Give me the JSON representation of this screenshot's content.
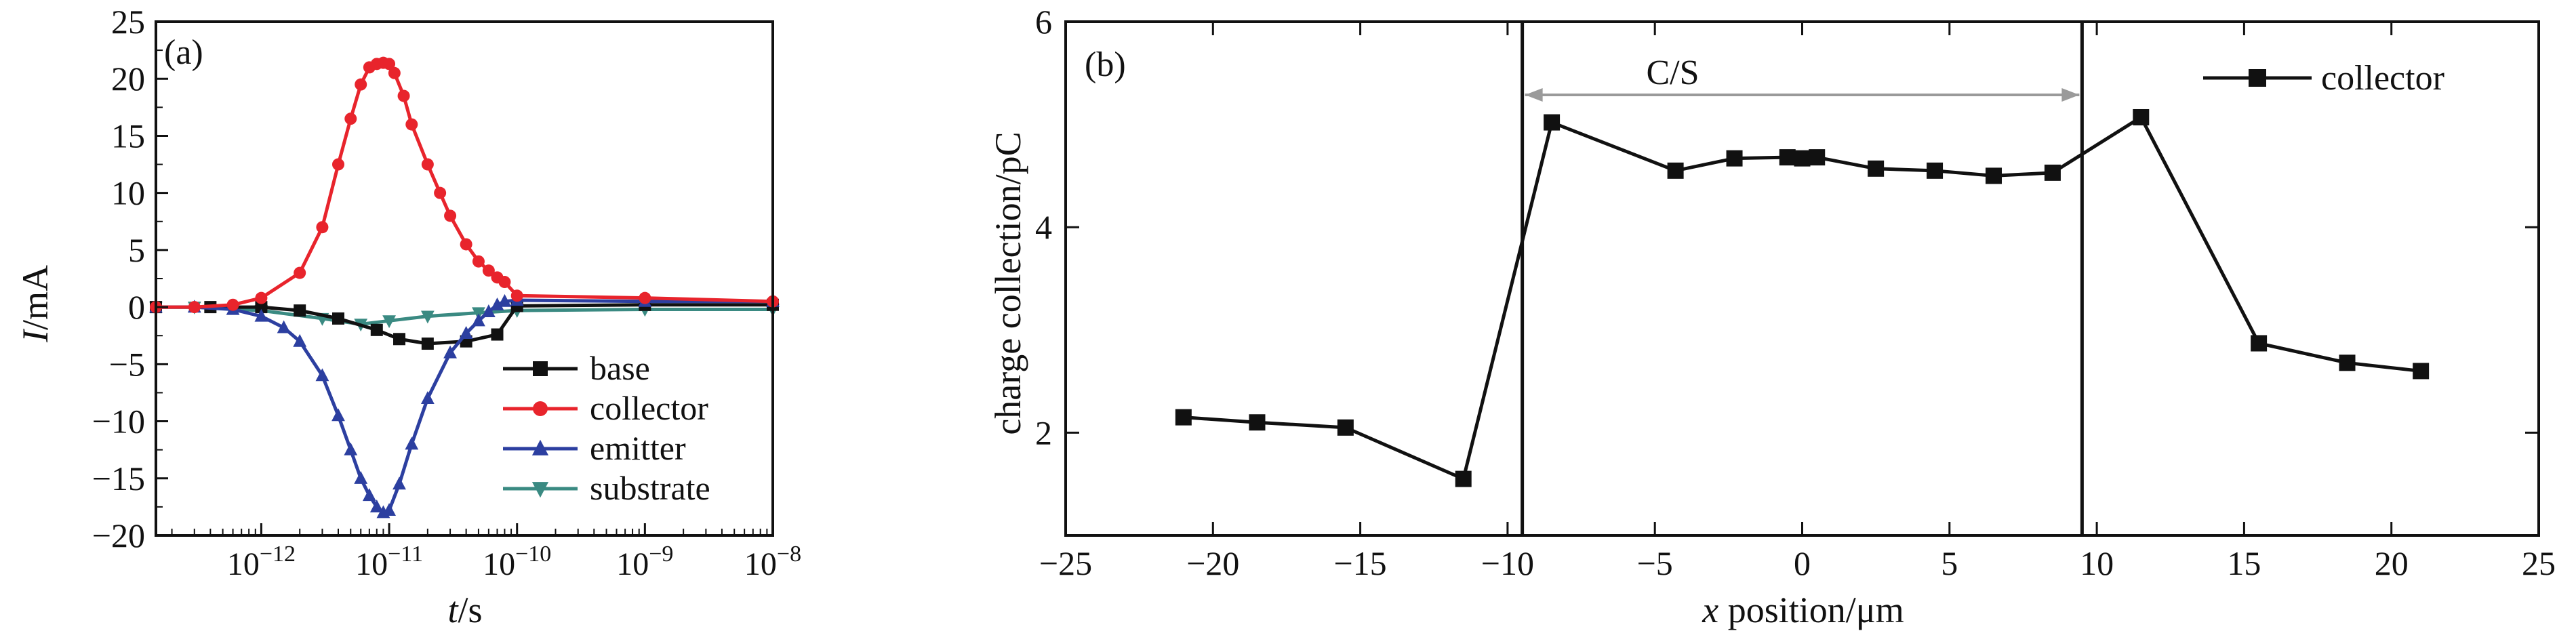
{
  "chart_data": [
    {
      "panel_label": "(a)",
      "type": "line",
      "xlabel": {
        "var": "t",
        "unit": "/s"
      },
      "ylabel": {
        "var": "I",
        "unit": "/mA"
      },
      "x_scale": "log",
      "xlim": [
        1.5e-13,
        1e-08
      ],
      "ylim": [
        -20,
        25
      ],
      "yticks": [
        25,
        20,
        15,
        10,
        5,
        0,
        -5,
        -10,
        -15,
        -20
      ],
      "xticks": [
        {
          "value": 1e-12,
          "base": "10",
          "exp": "−12"
        },
        {
          "value": 1e-11,
          "base": "10",
          "exp": "−11"
        },
        {
          "value": 1e-10,
          "base": "10",
          "exp": "−10"
        },
        {
          "value": 1e-09,
          "base": "10",
          "exp": "−9"
        },
        {
          "value": 1e-08,
          "base": "10",
          "exp": "−8"
        }
      ],
      "legend_position": "bottom-right",
      "series": [
        {
          "name": "base",
          "color": "#111111",
          "marker": "square",
          "x": [
            1.5e-13,
            4e-13,
            1e-12,
            2e-12,
            4e-12,
            8e-12,
            1.2e-11,
            2e-11,
            4e-11,
            7e-11,
            1e-10,
            1e-09,
            1e-08
          ],
          "y": [
            0,
            0,
            0,
            -0.3,
            -1.0,
            -2.0,
            -2.8,
            -3.2,
            -3.0,
            -2.4,
            0.1,
            0.2,
            0.2
          ]
        },
        {
          "name": "collector",
          "color": "#e8242c",
          "marker": "circle",
          "x": [
            1.5e-13,
            3e-13,
            6e-13,
            1e-12,
            2e-12,
            3e-12,
            4e-12,
            5e-12,
            6e-12,
            7e-12,
            8e-12,
            9e-12,
            1e-11,
            1.1e-11,
            1.3e-11,
            1.5e-11,
            2e-11,
            2.5e-11,
            3e-11,
            4e-11,
            5e-11,
            6e-11,
            7e-11,
            8e-11,
            1e-10,
            1e-09,
            1e-08
          ],
          "y": [
            0,
            0,
            0.2,
            0.8,
            3,
            7,
            12.5,
            16.5,
            19.5,
            21,
            21.3,
            21.4,
            21.3,
            20.5,
            18.5,
            16,
            12.5,
            10,
            8,
            5.5,
            4,
            3.2,
            2.6,
            2.2,
            1,
            0.8,
            0.5
          ]
        },
        {
          "name": "emitter",
          "color": "#2c3fa0",
          "marker": "triangle",
          "x": [
            1.5e-13,
            3e-13,
            6e-13,
            1e-12,
            1.5e-12,
            2e-12,
            3e-12,
            4e-12,
            5e-12,
            6e-12,
            7e-12,
            8e-12,
            9e-12,
            1e-11,
            1.2e-11,
            1.5e-11,
            2e-11,
            3e-11,
            4e-11,
            5e-11,
            6e-11,
            7e-11,
            8e-11,
            1e-10,
            1e-09,
            1e-08
          ],
          "y": [
            0,
            0,
            -0.2,
            -0.8,
            -1.8,
            -3,
            -6,
            -9.5,
            -12.5,
            -15,
            -16.5,
            -17.5,
            -18,
            -17.8,
            -15.5,
            -12,
            -8,
            -4,
            -2.3,
            -1.2,
            -0.4,
            0.2,
            0.5,
            0.6,
            0.5,
            0.5
          ]
        },
        {
          "name": "substrate",
          "color": "#3a8a82",
          "marker": "triangle-down",
          "x": [
            1.5e-13,
            3e-13,
            1e-12,
            3e-12,
            6e-12,
            1e-11,
            2e-11,
            5e-11,
            1e-10,
            1e-09,
            1e-08
          ],
          "y": [
            0,
            0,
            -0.3,
            -1.0,
            -1.5,
            -1.2,
            -0.8,
            -0.5,
            -0.3,
            -0.2,
            -0.2
          ]
        }
      ]
    },
    {
      "panel_label": "(b)",
      "type": "line",
      "xlabel": {
        "var": "x",
        "rest": " position/μm"
      },
      "ylabel": "charge collection/pC",
      "xlim": [
        -25,
        25
      ],
      "ylim": [
        1,
        6
      ],
      "xticks": [
        -25,
        -20,
        -15,
        -10,
        -5,
        0,
        5,
        10,
        15,
        20,
        25
      ],
      "yticks": [
        2,
        4,
        6
      ],
      "legend_position": "top-right",
      "annotation": {
        "text": "C/S",
        "from": -9.5,
        "to": 9.5
      },
      "series": [
        {
          "name": "collector",
          "color": "#111111",
          "marker": "square",
          "x": [
            -21,
            -18.5,
            -15.5,
            -11.5,
            -8.5,
            -4.3,
            -2.3,
            -0.5,
            0,
            0.5,
            2.5,
            4.5,
            6.5,
            8.5,
            11.5,
            15.5,
            18.5,
            21
          ],
          "y": [
            2.15,
            2.1,
            2.05,
            1.55,
            5.02,
            4.55,
            4.67,
            4.68,
            4.67,
            4.68,
            4.57,
            4.55,
            4.5,
            4.53,
            5.07,
            2.87,
            2.68,
            2.6
          ]
        }
      ]
    }
  ]
}
